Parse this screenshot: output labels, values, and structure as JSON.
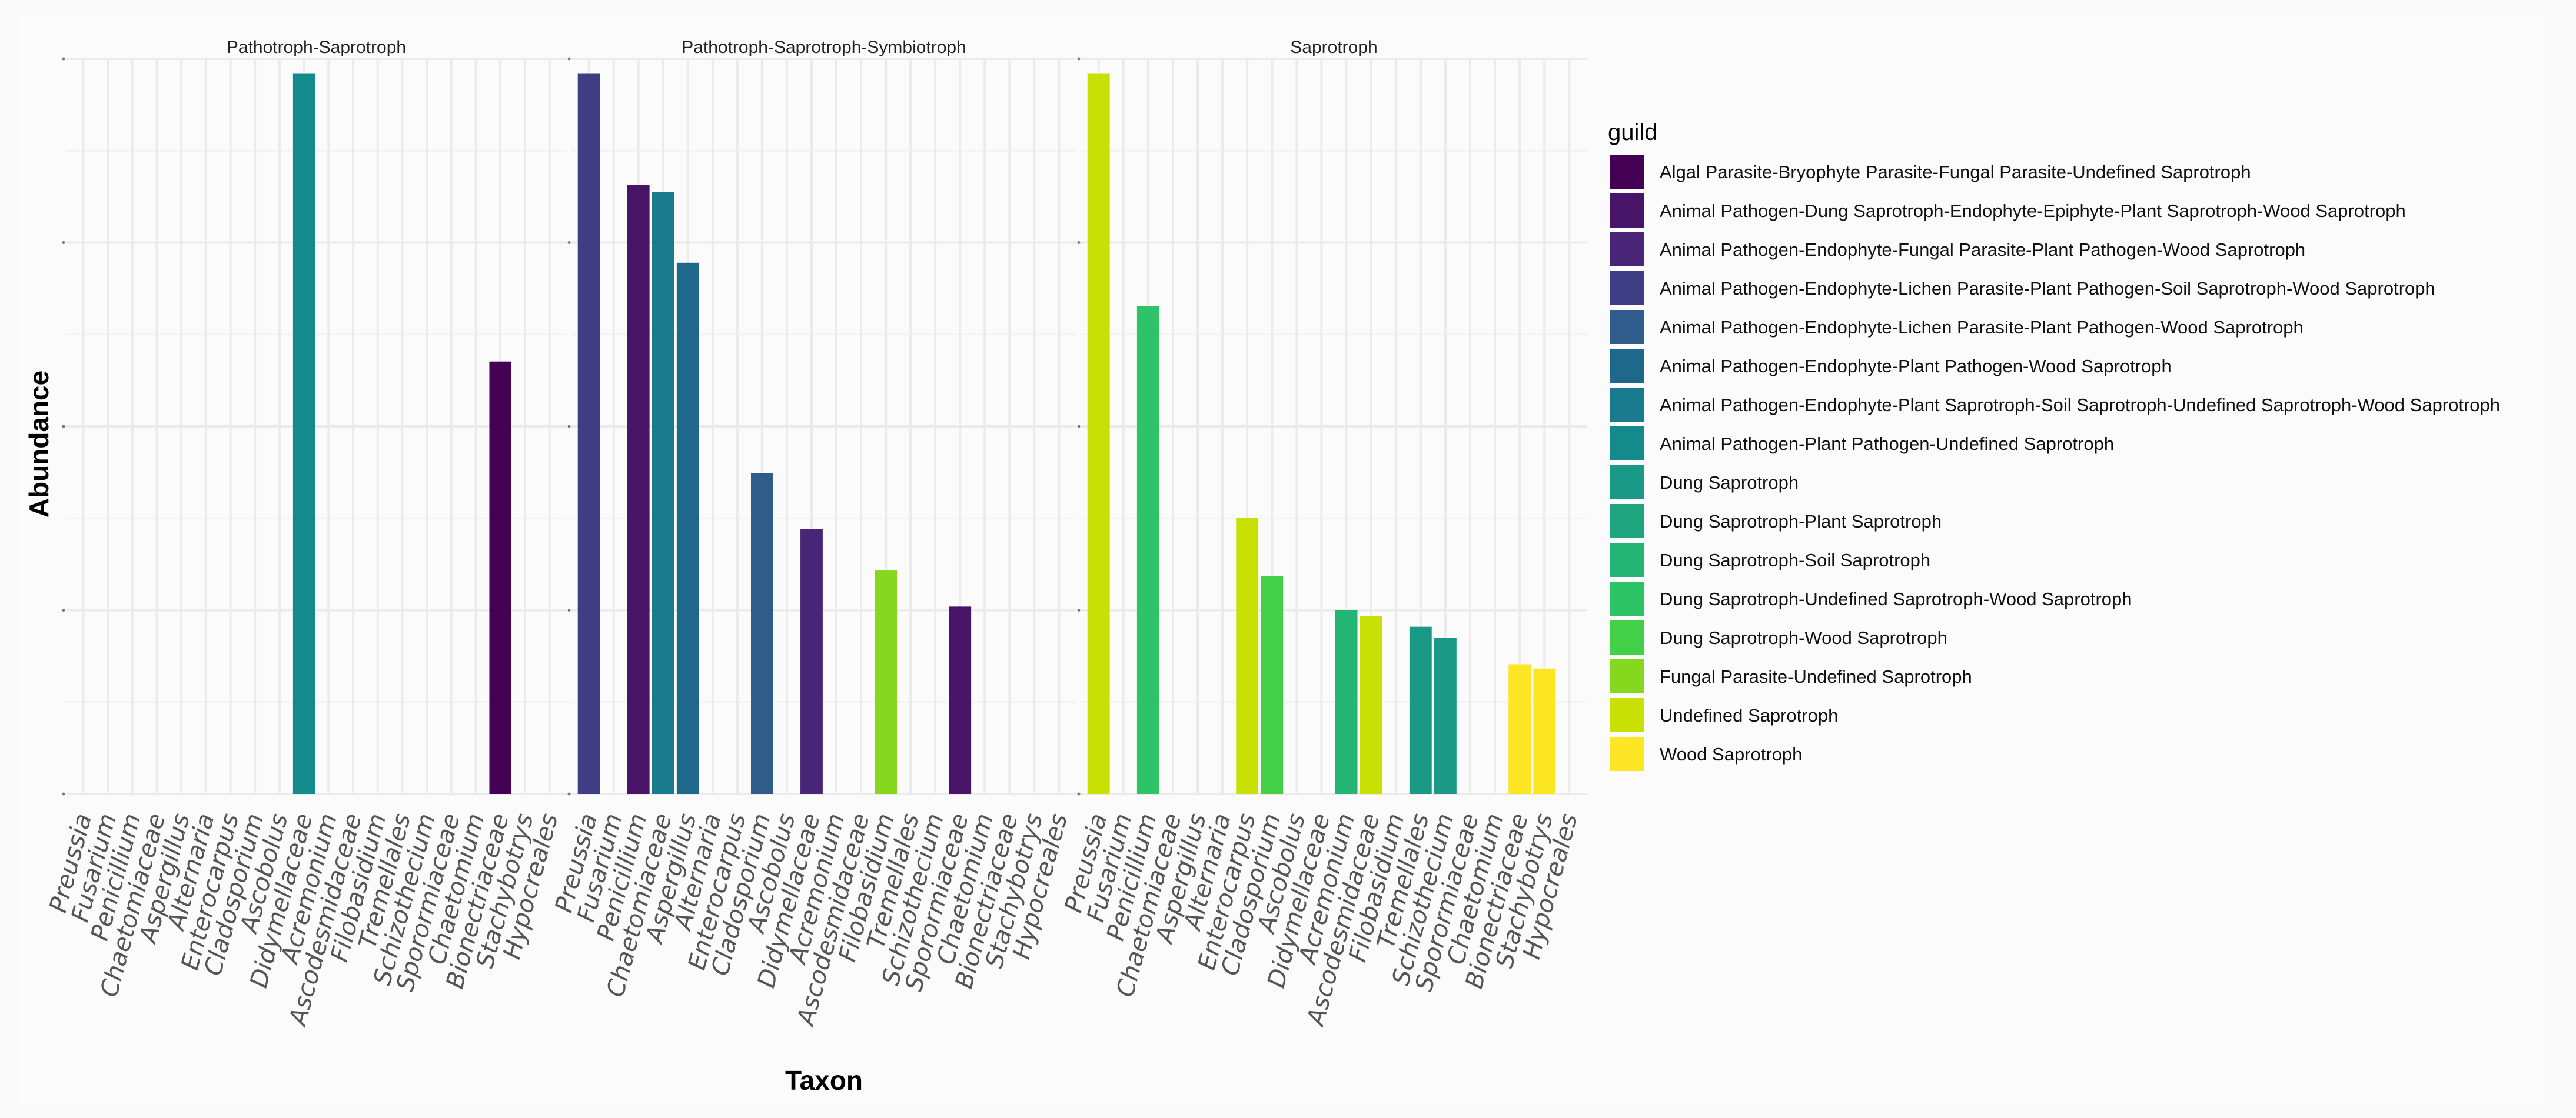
{
  "chart_data": {
    "type": "bar",
    "xlabel": "Taxon",
    "ylabel": "Abundance",
    "legend_title": "guild",
    "legend_position": "right",
    "guilds": [
      {
        "name": "Algal Parasite-Bryophyte Parasite-Fungal Parasite-Undefined Saprotroph",
        "color": "#440154"
      },
      {
        "name": "Animal Pathogen-Dung Saprotroph-Endophyte-Epiphyte-Plant Saprotroph-Wood Saprotroph",
        "color": "#481468"
      },
      {
        "name": "Animal Pathogen-Endophyte-Fungal Parasite-Plant Pathogen-Wood Saprotroph",
        "color": "#482576"
      },
      {
        "name": "Animal Pathogen-Endophyte-Lichen Parasite-Plant Pathogen-Soil Saprotroph-Wood Saprotroph",
        "color": "#3F3D84"
      },
      {
        "name": "Animal Pathogen-Endophyte-Lichen Parasite-Plant Pathogen-Wood Saprotroph",
        "color": "#2F5C8A"
      },
      {
        "name": "Animal Pathogen-Endophyte-Plant Pathogen-Wood Saprotroph",
        "color": "#1F678B"
      },
      {
        "name": "Animal Pathogen-Endophyte-Plant Saprotroph-Soil Saprotroph-Undefined Saprotroph-Wood Saprotroph",
        "color": "#1A7A8E"
      },
      {
        "name": "Animal Pathogen-Plant Pathogen-Undefined Saprotroph",
        "color": "#158A8C"
      },
      {
        "name": "Dung Saprotroph",
        "color": "#1A9A86"
      },
      {
        "name": "Dung Saprotroph-Plant Saprotroph",
        "color": "#20A67E"
      },
      {
        "name": "Dung Saprotroph-Soil Saprotroph",
        "color": "#22B573"
      },
      {
        "name": "Dung Saprotroph-Undefined Saprotroph-Wood Saprotroph",
        "color": "#2CC467"
      },
      {
        "name": "Dung Saprotroph-Wood Saprotroph",
        "color": "#44CF49"
      },
      {
        "name": "Fungal Parasite-Undefined Saprotroph",
        "color": "#85D81E"
      },
      {
        "name": "Undefined Saprotroph",
        "color": "#C8E003"
      },
      {
        "name": "Wood Saprotroph",
        "color": "#FDE725"
      }
    ],
    "facets": [
      {
        "title": "Pathotroph-Saprotroph",
        "ylim": [
          0,
          1.02
        ],
        "categories": [
          "Preussia",
          "Fusarium",
          "Penicillium",
          "Chaetomiaceae",
          "Aspergillus",
          "Alternaria",
          "Enterocarpus",
          "Cladosporium",
          "Ascobolus",
          "Didymellaceae",
          "Acremonium",
          "Ascodesmidaceae",
          "Filobasidium",
          "Tremellales",
          "Schizothecium",
          "Sporormiaceae",
          "Chaetomium",
          "Bionectriaceae",
          "Stachybotrys",
          "Hypocreales"
        ],
        "bars": [
          {
            "category": "Didymellaceae",
            "value": 1.0,
            "guild": 7
          },
          {
            "category": "Bionectriaceae",
            "value": 0.6,
            "guild": 0
          }
        ]
      },
      {
        "title": "Pathotroph-Saprotroph-Symbiotroph",
        "ylim": [
          0,
          1.02
        ],
        "categories": [
          "Preussia",
          "Fusarium",
          "Penicillium",
          "Chaetomiaceae",
          "Aspergillus",
          "Alternaria",
          "Enterocarpus",
          "Cladosporium",
          "Ascobolus",
          "Didymellaceae",
          "Acremonium",
          "Ascodesmidaceae",
          "Filobasidium",
          "Tremellales",
          "Schizothecium",
          "Sporormiaceae",
          "Chaetomium",
          "Bionectriaceae",
          "Stachybotrys",
          "Hypocreales"
        ],
        "bars": [
          {
            "category": "Preussia",
            "value": 1.0,
            "guild": 3
          },
          {
            "category": "Penicillium",
            "value": 0.845,
            "guild": 1
          },
          {
            "category": "Chaetomiaceae",
            "value": 0.835,
            "guild": 6
          },
          {
            "category": "Aspergillus",
            "value": 0.737,
            "guild": 5
          },
          {
            "category": "Cladosporium",
            "value": 0.445,
            "guild": 4
          },
          {
            "category": "Didymellaceae",
            "value": 0.368,
            "guild": 2
          },
          {
            "category": "Filobasidium",
            "value": 0.31,
            "guild": 13
          },
          {
            "category": "Sporormiaceae",
            "value": 0.26,
            "guild": 1
          }
        ]
      },
      {
        "title": "Saprotroph",
        "ylim": [
          0,
          1.02
        ],
        "categories": [
          "Preussia",
          "Fusarium",
          "Penicillium",
          "Chaetomiaceae",
          "Aspergillus",
          "Alternaria",
          "Enterocarpus",
          "Cladosporium",
          "Ascobolus",
          "Didymellaceae",
          "Acremonium",
          "Ascodesmidaceae",
          "Filobasidium",
          "Tremellales",
          "Schizothecium",
          "Sporormiaceae",
          "Chaetomium",
          "Bionectriaceae",
          "Stachybotrys",
          "Hypocreales"
        ],
        "bars": [
          {
            "category": "Preussia",
            "value": 1.0,
            "guild": 14
          },
          {
            "category": "Penicillium",
            "value": 0.677,
            "guild": 11
          },
          {
            "category": "Enterocarpus",
            "value": 0.383,
            "guild": 14
          },
          {
            "category": "Cladosporium",
            "value": 0.302,
            "guild": 12
          },
          {
            "category": "Acremonium",
            "value": 0.255,
            "guild": 10
          },
          {
            "category": "Ascodesmidaceae",
            "value": 0.247,
            "guild": 14
          },
          {
            "category": "Tremellales",
            "value": 0.232,
            "guild": 8
          },
          {
            "category": "Schizothecium",
            "value": 0.217,
            "guild": 8
          },
          {
            "category": "Bionectriaceae",
            "value": 0.18,
            "guild": 15
          },
          {
            "category": "Stachybotrys",
            "value": 0.174,
            "guild": 15
          }
        ]
      }
    ]
  }
}
